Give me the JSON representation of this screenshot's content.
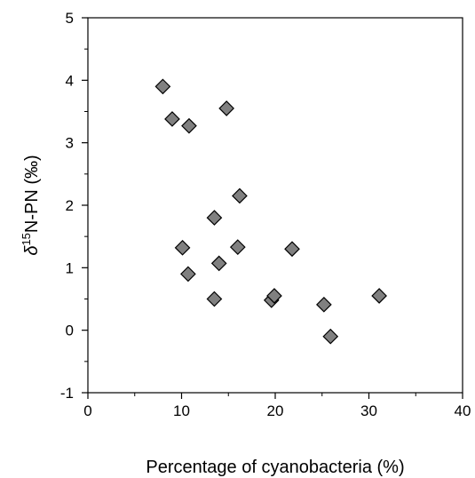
{
  "chart_data": {
    "type": "scatter",
    "xlabel": "Percentage of cyanobacteria (%)",
    "ylabel": {
      "symbol": "δ",
      "superscript": "15",
      "text": "N-PN (‰)"
    },
    "xlim": [
      0,
      40
    ],
    "ylim": [
      -1,
      5
    ],
    "x_ticks": [
      0,
      10,
      20,
      30,
      40
    ],
    "y_ticks": [
      -1,
      0,
      1,
      2,
      3,
      4,
      5
    ],
    "x_tick_labels": [
      "0",
      "10",
      "20",
      "30",
      "40"
    ],
    "y_tick_labels": [
      "-1",
      "0",
      "1",
      "2",
      "3",
      "4",
      "5"
    ],
    "grid": false,
    "marker": "diamond",
    "marker_color": "#808080",
    "points": [
      {
        "x": 8.0,
        "y": 3.9
      },
      {
        "x": 9.0,
        "y": 3.38
      },
      {
        "x": 10.8,
        "y": 3.27
      },
      {
        "x": 14.8,
        "y": 3.55
      },
      {
        "x": 16.2,
        "y": 2.15
      },
      {
        "x": 13.5,
        "y": 1.8
      },
      {
        "x": 10.1,
        "y": 1.32
      },
      {
        "x": 16.0,
        "y": 1.33
      },
      {
        "x": 21.8,
        "y": 1.3
      },
      {
        "x": 14.0,
        "y": 1.07
      },
      {
        "x": 10.7,
        "y": 0.9
      },
      {
        "x": 13.5,
        "y": 0.5
      },
      {
        "x": 19.6,
        "y": 0.48
      },
      {
        "x": 19.9,
        "y": 0.55
      },
      {
        "x": 25.2,
        "y": 0.41
      },
      {
        "x": 31.1,
        "y": 0.55
      },
      {
        "x": 25.9,
        "y": -0.1
      }
    ]
  }
}
